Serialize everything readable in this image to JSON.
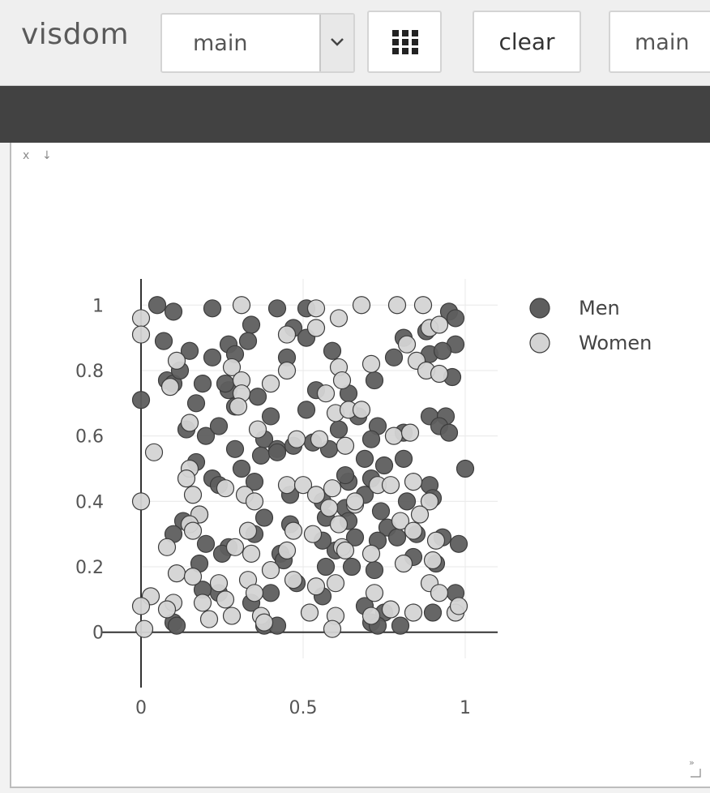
{
  "app": {
    "title": "visdom",
    "env_select": {
      "value": "main"
    },
    "env_input": {
      "value": "main"
    },
    "buttons": {
      "clear_label": "clear",
      "layout_icon": "grid-icon"
    }
  },
  "pane": {
    "close_label": "x",
    "download_label": "↓",
    "resize_label": "»"
  },
  "colors": {
    "men": "#5e5e5e",
    "women": "#d4d4d4",
    "marker_edge": "#3c3c3c",
    "axis": "#333333",
    "grid": "#ececec"
  },
  "chart_data": {
    "type": "scatter",
    "title": "",
    "xlabel": "",
    "ylabel": "",
    "xlim": [
      0,
      1.1
    ],
    "ylim": [
      -0.08,
      1.08
    ],
    "x_ticks": [
      0,
      0.5,
      1
    ],
    "x_tick_labels": [
      "0",
      "0.5",
      "1"
    ],
    "y_ticks": [
      0,
      0.2,
      0.4,
      0.6,
      0.8,
      1
    ],
    "y_tick_labels": [
      "0",
      "0.2",
      "0.4",
      "0.6",
      "0.8",
      "1"
    ],
    "grid": true,
    "legend_position": "right",
    "series": [
      {
        "name": "Men",
        "points": [
          [
            0.05,
            1.0
          ],
          [
            0.1,
            0.98
          ],
          [
            0.22,
            0.99
          ],
          [
            0.42,
            0.99
          ],
          [
            0.51,
            0.99
          ],
          [
            0.95,
            0.98
          ],
          [
            0.97,
            0.96
          ],
          [
            0.34,
            0.94
          ],
          [
            0.47,
            0.93
          ],
          [
            0.07,
            0.89
          ],
          [
            0.27,
            0.88
          ],
          [
            0.33,
            0.89
          ],
          [
            0.51,
            0.9
          ],
          [
            0.81,
            0.9
          ],
          [
            0.89,
            0.85
          ],
          [
            0.97,
            0.88
          ],
          [
            0.15,
            0.86
          ],
          [
            0.22,
            0.84
          ],
          [
            0.29,
            0.85
          ],
          [
            0.45,
            0.84
          ],
          [
            0.59,
            0.86
          ],
          [
            0.78,
            0.84
          ],
          [
            0.93,
            0.86
          ],
          [
            0.08,
            0.77
          ],
          [
            0.1,
            0.76
          ],
          [
            0.19,
            0.76
          ],
          [
            0.27,
            0.74
          ],
          [
            0.36,
            0.72
          ],
          [
            0.54,
            0.74
          ],
          [
            0.64,
            0.73
          ],
          [
            0.72,
            0.77
          ],
          [
            0.96,
            0.78
          ],
          [
            0.0,
            0.71
          ],
          [
            0.17,
            0.7
          ],
          [
            0.29,
            0.69
          ],
          [
            0.4,
            0.66
          ],
          [
            0.51,
            0.68
          ],
          [
            0.67,
            0.66
          ],
          [
            0.73,
            0.63
          ],
          [
            0.89,
            0.66
          ],
          [
            0.94,
            0.66
          ],
          [
            0.14,
            0.62
          ],
          [
            0.2,
            0.6
          ],
          [
            0.24,
            0.63
          ],
          [
            0.38,
            0.59
          ],
          [
            0.42,
            0.56
          ],
          [
            0.53,
            0.58
          ],
          [
            0.61,
            0.62
          ],
          [
            0.71,
            0.59
          ],
          [
            0.81,
            0.61
          ],
          [
            0.92,
            0.63
          ],
          [
            0.95,
            0.61
          ],
          [
            0.29,
            0.56
          ],
          [
            0.37,
            0.54
          ],
          [
            0.42,
            0.55
          ],
          [
            0.47,
            0.57
          ],
          [
            0.58,
            0.56
          ],
          [
            0.69,
            0.53
          ],
          [
            0.75,
            0.51
          ],
          [
            0.81,
            0.53
          ],
          [
            1.0,
            0.5
          ],
          [
            0.17,
            0.52
          ],
          [
            0.22,
            0.47
          ],
          [
            0.31,
            0.5
          ],
          [
            0.35,
            0.46
          ],
          [
            0.64,
            0.46
          ],
          [
            0.71,
            0.47
          ],
          [
            0.89,
            0.45
          ],
          [
            0.24,
            0.45
          ],
          [
            0.46,
            0.42
          ],
          [
            0.56,
            0.4
          ],
          [
            0.63,
            0.38
          ],
          [
            0.69,
            0.42
          ],
          [
            0.74,
            0.37
          ],
          [
            0.82,
            0.4
          ],
          [
            0.9,
            0.41
          ],
          [
            0.13,
            0.34
          ],
          [
            0.18,
            0.36
          ],
          [
            0.38,
            0.35
          ],
          [
            0.46,
            0.33
          ],
          [
            0.57,
            0.35
          ],
          [
            0.64,
            0.34
          ],
          [
            0.76,
            0.32
          ],
          [
            0.85,
            0.3
          ],
          [
            0.93,
            0.29
          ],
          [
            0.1,
            0.3
          ],
          [
            0.2,
            0.27
          ],
          [
            0.27,
            0.26
          ],
          [
            0.35,
            0.3
          ],
          [
            0.43,
            0.24
          ],
          [
            0.6,
            0.25
          ],
          [
            0.66,
            0.29
          ],
          [
            0.73,
            0.28
          ],
          [
            0.79,
            0.29
          ],
          [
            0.98,
            0.27
          ],
          [
            0.18,
            0.21
          ],
          [
            0.25,
            0.24
          ],
          [
            0.44,
            0.22
          ],
          [
            0.57,
            0.2
          ],
          [
            0.65,
            0.2
          ],
          [
            0.72,
            0.19
          ],
          [
            0.84,
            0.23
          ],
          [
            0.91,
            0.21
          ],
          [
            0.24,
            0.12
          ],
          [
            0.34,
            0.09
          ],
          [
            0.4,
            0.12
          ],
          [
            0.48,
            0.15
          ],
          [
            0.56,
            0.11
          ],
          [
            0.69,
            0.08
          ],
          [
            0.75,
            0.06
          ],
          [
            0.9,
            0.06
          ],
          [
            0.97,
            0.12
          ],
          [
            0.1,
            0.03
          ],
          [
            0.11,
            0.02
          ],
          [
            0.38,
            0.02
          ],
          [
            0.42,
            0.02
          ],
          [
            0.71,
            0.03
          ],
          [
            0.73,
            0.02
          ],
          [
            0.8,
            0.02
          ],
          [
            0.19,
            0.13
          ],
          [
            0.56,
            0.28
          ],
          [
            0.63,
            0.48
          ],
          [
            0.26,
            0.76
          ],
          [
            0.12,
            0.8
          ],
          [
            0.88,
            0.92
          ]
        ]
      },
      {
        "name": "Women",
        "points": [
          [
            0.31,
            1.0
          ],
          [
            0.54,
            0.99
          ],
          [
            0.68,
            1.0
          ],
          [
            0.79,
            1.0
          ],
          [
            0.87,
            1.0
          ],
          [
            0.0,
            0.96
          ],
          [
            0.61,
            0.96
          ],
          [
            0.89,
            0.93
          ],
          [
            0.92,
            0.94
          ],
          [
            0.0,
            0.91
          ],
          [
            0.45,
            0.91
          ],
          [
            0.54,
            0.93
          ],
          [
            0.82,
            0.88
          ],
          [
            0.11,
            0.83
          ],
          [
            0.28,
            0.81
          ],
          [
            0.45,
            0.8
          ],
          [
            0.61,
            0.81
          ],
          [
            0.71,
            0.82
          ],
          [
            0.85,
            0.83
          ],
          [
            0.88,
            0.8
          ],
          [
            0.92,
            0.79
          ],
          [
            0.31,
            0.77
          ],
          [
            0.4,
            0.76
          ],
          [
            0.62,
            0.77
          ],
          [
            0.09,
            0.75
          ],
          [
            0.31,
            0.73
          ],
          [
            0.57,
            0.73
          ],
          [
            0.3,
            0.69
          ],
          [
            0.6,
            0.67
          ],
          [
            0.64,
            0.68
          ],
          [
            0.68,
            0.68
          ],
          [
            0.15,
            0.64
          ],
          [
            0.36,
            0.62
          ],
          [
            0.48,
            0.59
          ],
          [
            0.55,
            0.59
          ],
          [
            0.63,
            0.57
          ],
          [
            0.78,
            0.6
          ],
          [
            0.83,
            0.61
          ],
          [
            0.04,
            0.55
          ],
          [
            0.15,
            0.5
          ],
          [
            0.14,
            0.47
          ],
          [
            0.45,
            0.45
          ],
          [
            0.5,
            0.45
          ],
          [
            0.59,
            0.44
          ],
          [
            0.73,
            0.45
          ],
          [
            0.77,
            0.45
          ],
          [
            0.84,
            0.46
          ],
          [
            0.89,
            0.4
          ],
          [
            0.0,
            0.4
          ],
          [
            0.18,
            0.36
          ],
          [
            0.26,
            0.44
          ],
          [
            0.32,
            0.42
          ],
          [
            0.35,
            0.4
          ],
          [
            0.54,
            0.42
          ],
          [
            0.58,
            0.38
          ],
          [
            0.66,
            0.39
          ],
          [
            0.8,
            0.34
          ],
          [
            0.86,
            0.36
          ],
          [
            0.15,
            0.33
          ],
          [
            0.16,
            0.31
          ],
          [
            0.33,
            0.31
          ],
          [
            0.47,
            0.31
          ],
          [
            0.53,
            0.3
          ],
          [
            0.61,
            0.33
          ],
          [
            0.84,
            0.31
          ],
          [
            0.91,
            0.28
          ],
          [
            0.08,
            0.26
          ],
          [
            0.29,
            0.26
          ],
          [
            0.34,
            0.24
          ],
          [
            0.45,
            0.25
          ],
          [
            0.62,
            0.26
          ],
          [
            0.71,
            0.24
          ],
          [
            0.81,
            0.21
          ],
          [
            0.9,
            0.22
          ],
          [
            0.11,
            0.18
          ],
          [
            0.16,
            0.17
          ],
          [
            0.24,
            0.15
          ],
          [
            0.33,
            0.16
          ],
          [
            0.4,
            0.19
          ],
          [
            0.47,
            0.16
          ],
          [
            0.54,
            0.14
          ],
          [
            0.6,
            0.15
          ],
          [
            0.72,
            0.12
          ],
          [
            0.89,
            0.15
          ],
          [
            0.92,
            0.12
          ],
          [
            0.03,
            0.11
          ],
          [
            0.1,
            0.09
          ],
          [
            0.19,
            0.09
          ],
          [
            0.26,
            0.1
          ],
          [
            0.35,
            0.12
          ],
          [
            0.0,
            0.08
          ],
          [
            0.08,
            0.07
          ],
          [
            0.21,
            0.04
          ],
          [
            0.28,
            0.05
          ],
          [
            0.37,
            0.05
          ],
          [
            0.52,
            0.06
          ],
          [
            0.6,
            0.05
          ],
          [
            0.71,
            0.05
          ],
          [
            0.77,
            0.07
          ],
          [
            0.84,
            0.06
          ],
          [
            0.97,
            0.06
          ],
          [
            0.01,
            0.01
          ],
          [
            0.38,
            0.03
          ],
          [
            0.59,
            0.01
          ],
          [
            0.98,
            0.08
          ],
          [
            0.16,
            0.42
          ],
          [
            0.63,
            0.25
          ],
          [
            0.66,
            0.4
          ]
        ]
      }
    ]
  }
}
